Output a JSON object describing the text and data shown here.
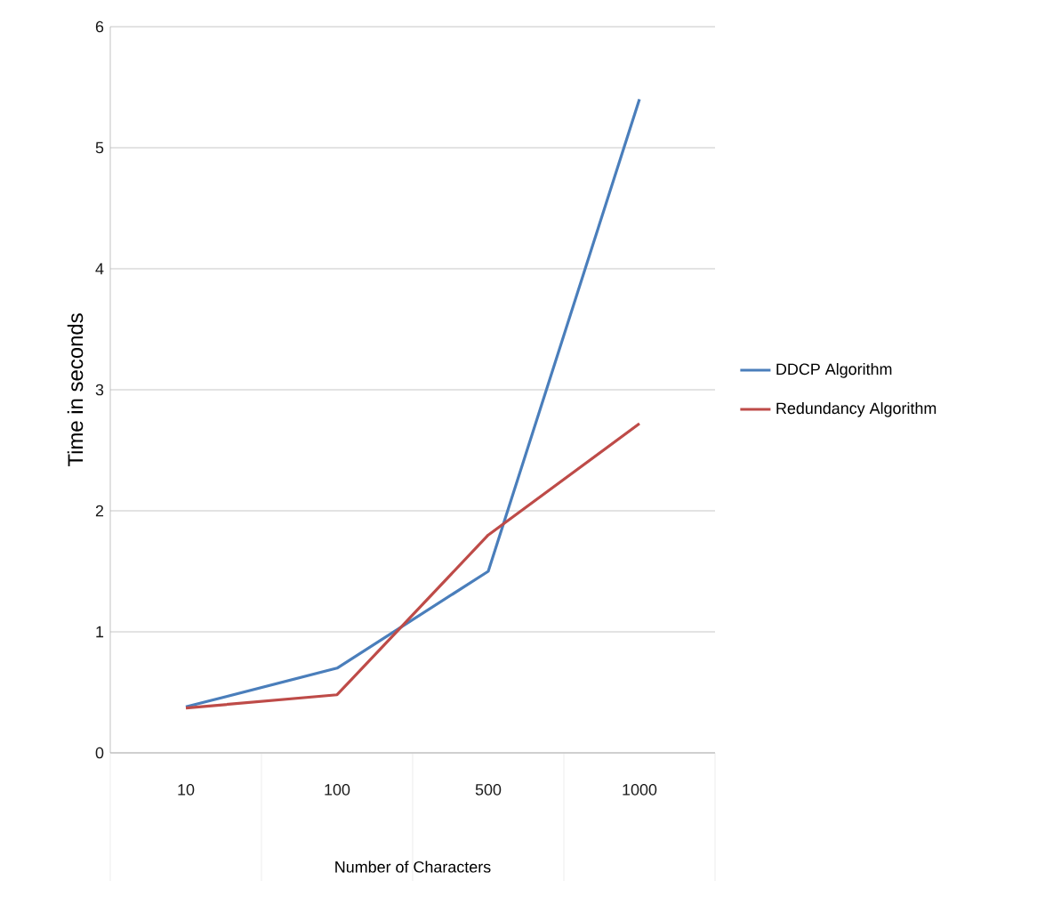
{
  "chart_data": {
    "type": "line",
    "xlabel": "Number of Characters",
    "ylabel": "Time in seconds",
    "categories": [
      "10",
      "100",
      "500",
      "1000"
    ],
    "series": [
      {
        "name": "DDCP Algorithm",
        "color": "#4a7ebb",
        "values": [
          0.38,
          0.7,
          1.5,
          5.4
        ]
      },
      {
        "name": "Redundancy Algorithm",
        "color": "#be4b48",
        "values": [
          0.37,
          0.48,
          1.8,
          2.72
        ]
      }
    ],
    "ylim": [
      0,
      6
    ],
    "yticks": [
      0,
      1,
      2,
      3,
      4,
      5,
      6
    ],
    "grid": "y",
    "legend": "right",
    "marker": "none",
    "line_style": "solid"
  }
}
